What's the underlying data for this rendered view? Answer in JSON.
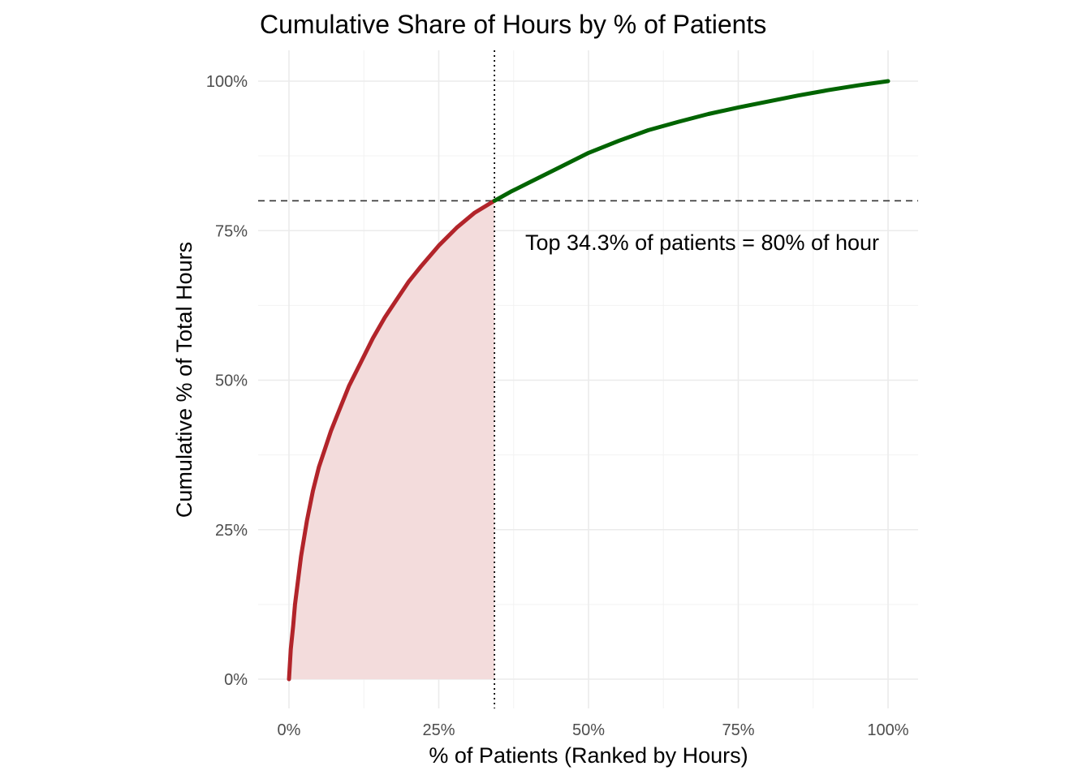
{
  "chart_data": {
    "type": "area",
    "title": "Cumulative Share of Hours by % of Patients",
    "xlabel": "% of Patients (Ranked by Hours)",
    "ylabel": "Cumulative % of Total Hours",
    "xlim": [
      0,
      100
    ],
    "ylim": [
      0,
      100
    ],
    "x_ticks": [
      0,
      25,
      50,
      75,
      100
    ],
    "y_ticks": [
      0,
      25,
      50,
      75,
      100
    ],
    "x_tick_labels": [
      "0%",
      "25%",
      "50%",
      "75%",
      "100%"
    ],
    "y_tick_labels": [
      "0%",
      "25%",
      "50%",
      "75%",
      "100%"
    ],
    "grid": true,
    "legend": "none",
    "threshold_x": 34.3,
    "threshold_y": 80,
    "annotation": "Top 34.3% of patients = 80% of hour",
    "colors": {
      "below_threshold": "#b2242a",
      "above_threshold": "#006400",
      "fill": "#f3dcdc",
      "reference_lines": "#333333"
    },
    "series": [
      {
        "x": [
          0,
          0.3,
          0.7,
          1,
          1.5,
          2,
          3,
          4,
          5,
          6,
          7,
          8,
          10,
          12,
          14,
          16,
          18,
          20,
          22,
          25,
          28,
          31,
          34.3,
          37,
          40,
          45,
          50,
          55,
          60,
          65,
          70,
          75,
          80,
          85,
          90,
          95,
          100
        ],
        "y": [
          0,
          5,
          9,
          12.5,
          16.5,
          20.5,
          26.5,
          31.5,
          35.5,
          38.5,
          41.5,
          44,
          49,
          53,
          57,
          60.5,
          63.5,
          66.5,
          69,
          72.5,
          75.5,
          78,
          80,
          81.5,
          83,
          85.5,
          88,
          90,
          91.8,
          93.2,
          94.5,
          95.6,
          96.6,
          97.6,
          98.5,
          99.3,
          100
        ]
      }
    ]
  }
}
